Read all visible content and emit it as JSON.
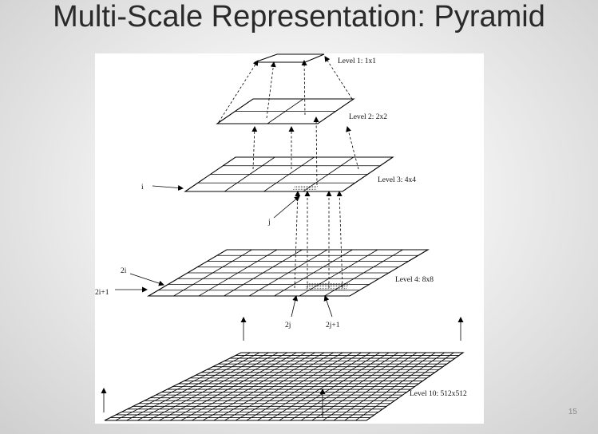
{
  "slide": {
    "title": "Multi-Scale Representation: Pyramid",
    "page_number": "15"
  },
  "diagram": {
    "levels": [
      {
        "label": "Level 1: 1x1",
        "cells": 1
      },
      {
        "label": "Level 2: 2x2",
        "cells": 2
      },
      {
        "label": "Level 3: 4x4",
        "cells": 4
      },
      {
        "label": "Level 4: 8x8",
        "cells": 8
      },
      {
        "label": "Level 10: 512x512",
        "cells": 24
      }
    ],
    "annotations": {
      "i": "i",
      "j": "j",
      "two_i": "2i",
      "two_i_plus_1": "2i+1",
      "two_j": "2j",
      "two_j_plus_1": "2j+1"
    }
  }
}
